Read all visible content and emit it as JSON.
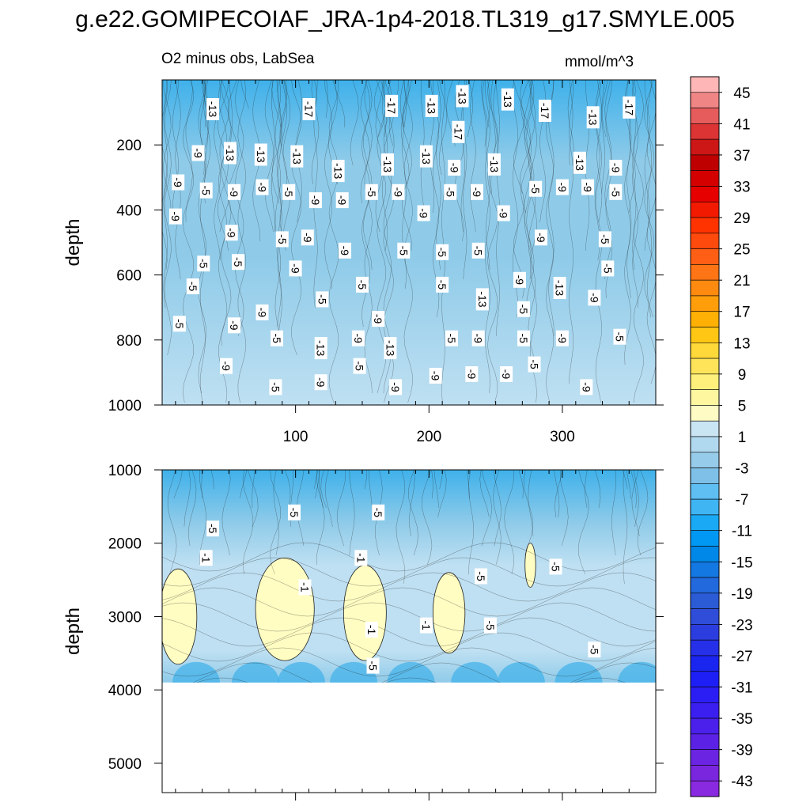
{
  "title": "g.e22.GOMIPECOIAF_JRA-1p4-2018.TL319_g17.SMYLE.005",
  "subtitle": "O2 minus obs, LabSea",
  "units": "mmol/m^3",
  "colors": {
    "negative_light": "#bfe0f2",
    "negative_mid": "#8fcbe9",
    "negative_deep": "#3fb1ea",
    "positive_light": "#fffdc2",
    "contour_line": "#1f1f1f",
    "missing": "#ffffff"
  },
  "chart_data": [
    {
      "type": "heatmap",
      "name": "upper-panel",
      "ylabel": "depth",
      "xlabel": "",
      "xlim": [
        0,
        370
      ],
      "ylim": [
        0,
        1000
      ],
      "y_inverted": true,
      "x_ticks": [
        100,
        200,
        300
      ],
      "x_tick_labels": [
        "100",
        "200",
        "300"
      ],
      "y_ticks": [
        200,
        400,
        600,
        800,
        1000
      ],
      "y_tick_labels": [
        "200",
        "400",
        "600",
        "800",
        "1000"
      ],
      "contour_labels": [
        {
          "x": 38,
          "depth": 90,
          "text": "-13"
        },
        {
          "x": 110,
          "depth": 90,
          "text": "-17"
        },
        {
          "x": 172,
          "depth": 80,
          "text": "-17"
        },
        {
          "x": 202,
          "depth": 80,
          "text": "-13"
        },
        {
          "x": 225,
          "depth": 50,
          "text": "-13"
        },
        {
          "x": 259,
          "depth": 60,
          "text": "-13"
        },
        {
          "x": 287,
          "depth": 95,
          "text": "-17"
        },
        {
          "x": 323,
          "depth": 115,
          "text": "-13"
        },
        {
          "x": 350,
          "depth": 85,
          "text": "-17"
        },
        {
          "x": 222,
          "depth": 160,
          "text": "-17"
        },
        {
          "x": 27,
          "depth": 225,
          "text": "-9"
        },
        {
          "x": 51,
          "depth": 225,
          "text": "-13"
        },
        {
          "x": 74,
          "depth": 230,
          "text": "-13"
        },
        {
          "x": 101,
          "depth": 235,
          "text": "-13"
        },
        {
          "x": 132,
          "depth": 280,
          "text": "-13"
        },
        {
          "x": 169,
          "depth": 260,
          "text": "-13"
        },
        {
          "x": 198,
          "depth": 235,
          "text": "-13"
        },
        {
          "x": 219,
          "depth": 270,
          "text": "-9"
        },
        {
          "x": 249,
          "depth": 260,
          "text": "-13"
        },
        {
          "x": 313,
          "depth": 255,
          "text": "-13"
        },
        {
          "x": 340,
          "depth": 270,
          "text": "-9"
        },
        {
          "x": 12,
          "depth": 315,
          "text": "-9"
        },
        {
          "x": 33,
          "depth": 340,
          "text": "-5"
        },
        {
          "x": 54,
          "depth": 345,
          "text": "-9"
        },
        {
          "x": 75,
          "depth": 330,
          "text": "-9"
        },
        {
          "x": 95,
          "depth": 345,
          "text": "-5"
        },
        {
          "x": 115,
          "depth": 370,
          "text": "-9"
        },
        {
          "x": 135,
          "depth": 370,
          "text": "-9"
        },
        {
          "x": 157,
          "depth": 345,
          "text": "-5"
        },
        {
          "x": 177,
          "depth": 345,
          "text": "-9"
        },
        {
          "x": 216,
          "depth": 345,
          "text": "-5"
        },
        {
          "x": 236,
          "depth": 345,
          "text": "-9"
        },
        {
          "x": 280,
          "depth": 335,
          "text": "-5"
        },
        {
          "x": 300,
          "depth": 330,
          "text": "-9"
        },
        {
          "x": 319,
          "depth": 330,
          "text": "-9"
        },
        {
          "x": 340,
          "depth": 345,
          "text": "-5"
        },
        {
          "x": 10,
          "depth": 420,
          "text": "-9"
        },
        {
          "x": 196,
          "depth": 410,
          "text": "-9"
        },
        {
          "x": 256,
          "depth": 410,
          "text": "-9"
        },
        {
          "x": 52,
          "depth": 470,
          "text": "-9"
        },
        {
          "x": 90,
          "depth": 490,
          "text": "-5"
        },
        {
          "x": 109,
          "depth": 485,
          "text": "-9"
        },
        {
          "x": 137,
          "depth": 525,
          "text": "-9"
        },
        {
          "x": 181,
          "depth": 525,
          "text": "-5"
        },
        {
          "x": 210,
          "depth": 530,
          "text": "-5"
        },
        {
          "x": 237,
          "depth": 525,
          "text": "-5"
        },
        {
          "x": 284,
          "depth": 485,
          "text": "-9"
        },
        {
          "x": 332,
          "depth": 490,
          "text": "-5"
        },
        {
          "x": 31,
          "depth": 565,
          "text": "-5"
        },
        {
          "x": 57,
          "depth": 560,
          "text": "-5"
        },
        {
          "x": 100,
          "depth": 580,
          "text": "-9"
        },
        {
          "x": 334,
          "depth": 580,
          "text": "-5"
        },
        {
          "x": 268,
          "depth": 615,
          "text": "-9"
        },
        {
          "x": 23,
          "depth": 635,
          "text": "-5"
        },
        {
          "x": 120,
          "depth": 675,
          "text": "-5"
        },
        {
          "x": 150,
          "depth": 630,
          "text": "-5"
        },
        {
          "x": 210,
          "depth": 630,
          "text": "-5"
        },
        {
          "x": 240,
          "depth": 675,
          "text": "-13"
        },
        {
          "x": 298,
          "depth": 640,
          "text": "-13"
        },
        {
          "x": 324,
          "depth": 670,
          "text": "-9"
        },
        {
          "x": 75,
          "depth": 715,
          "text": "-9"
        },
        {
          "x": 162,
          "depth": 735,
          "text": "-9"
        },
        {
          "x": 271,
          "depth": 705,
          "text": "-5"
        },
        {
          "x": 13,
          "depth": 750,
          "text": "-5"
        },
        {
          "x": 54,
          "depth": 755,
          "text": "-9"
        },
        {
          "x": 86,
          "depth": 795,
          "text": "-5"
        },
        {
          "x": 147,
          "depth": 795,
          "text": "-9"
        },
        {
          "x": 217,
          "depth": 795,
          "text": "-5"
        },
        {
          "x": 237,
          "depth": 795,
          "text": "-9"
        },
        {
          "x": 271,
          "depth": 795,
          "text": "-5"
        },
        {
          "x": 300,
          "depth": 795,
          "text": "-9"
        },
        {
          "x": 343,
          "depth": 790,
          "text": "-5"
        },
        {
          "x": 119,
          "depth": 825,
          "text": "-13"
        },
        {
          "x": 171,
          "depth": 825,
          "text": "-13"
        },
        {
          "x": 48,
          "depth": 880,
          "text": "-9"
        },
        {
          "x": 148,
          "depth": 880,
          "text": "-5"
        },
        {
          "x": 279,
          "depth": 875,
          "text": "-5"
        },
        {
          "x": 205,
          "depth": 910,
          "text": "-9"
        },
        {
          "x": 232,
          "depth": 905,
          "text": "-9"
        },
        {
          "x": 258,
          "depth": 905,
          "text": "-9"
        },
        {
          "x": 119,
          "depth": 930,
          "text": "-9"
        },
        {
          "x": 85,
          "depth": 945,
          "text": "-5"
        },
        {
          "x": 175,
          "depth": 945,
          "text": "-9"
        },
        {
          "x": 318,
          "depth": 945,
          "text": "-9"
        }
      ]
    },
    {
      "type": "heatmap",
      "name": "lower-panel",
      "ylabel": "depth",
      "xlabel": "",
      "xlim": [
        0,
        370
      ],
      "ylim": [
        1000,
        5400
      ],
      "y_inverted": true,
      "data_max_depth": 3900,
      "y_ticks": [
        1000,
        2000,
        3000,
        4000,
        5000
      ],
      "y_tick_labels": [
        "1000",
        "2000",
        "3000",
        "4000",
        "5000"
      ],
      "x_ticks": [
        100,
        200,
        300
      ],
      "x_tick_labels": [],
      "positive_patches": [
        {
          "x_center": 12,
          "depth_center": 3000,
          "x_half": 14,
          "depth_half": 650
        },
        {
          "x_center": 92,
          "depth_center": 2900,
          "x_half": 22,
          "depth_half": 700
        },
        {
          "x_center": 152,
          "depth_center": 2950,
          "x_half": 16,
          "depth_half": 650
        },
        {
          "x_center": 215,
          "depth_center": 2950,
          "x_half": 12,
          "depth_half": 550
        },
        {
          "x_center": 276,
          "depth_center": 2300,
          "x_half": 4,
          "depth_half": 300
        }
      ],
      "contour_labels": [
        {
          "x": 38,
          "depth": 1800,
          "text": "-5"
        },
        {
          "x": 33,
          "depth": 2200,
          "text": "-1"
        },
        {
          "x": 99,
          "depth": 1580,
          "text": "-5"
        },
        {
          "x": 162,
          "depth": 1580,
          "text": "-5"
        },
        {
          "x": 149,
          "depth": 2200,
          "text": "-1"
        },
        {
          "x": 107,
          "depth": 2600,
          "text": "-1"
        },
        {
          "x": 157,
          "depth": 3180,
          "text": "-1"
        },
        {
          "x": 198,
          "depth": 3120,
          "text": "-1"
        },
        {
          "x": 239,
          "depth": 2450,
          "text": "-5"
        },
        {
          "x": 246,
          "depth": 3120,
          "text": "-5"
        },
        {
          "x": 295,
          "depth": 2320,
          "text": "-5"
        },
        {
          "x": 324,
          "depth": 3450,
          "text": "-5"
        },
        {
          "x": 158,
          "depth": 3670,
          "text": "-5"
        }
      ]
    },
    {
      "type": "colorbar",
      "name": "colorbar",
      "levels": [
        -45,
        -43,
        -41,
        -39,
        -37,
        -35,
        -33,
        -31,
        -29,
        -27,
        -25,
        -23,
        -21,
        -19,
        -17,
        -15,
        -13,
        -11,
        -9,
        -7,
        -5,
        -3,
        -1,
        1,
        3,
        5,
        7,
        9,
        11,
        13,
        15,
        17,
        19,
        21,
        23,
        25,
        27,
        29,
        31,
        33,
        35,
        37,
        39,
        41,
        43,
        45,
        47
      ],
      "tick_labels": [
        "45",
        "41",
        "37",
        "33",
        "29",
        "25",
        "21",
        "17",
        "13",
        "9",
        "5",
        "1",
        "-3",
        "-7",
        "-11",
        "-15",
        "-19",
        "-23",
        "-27",
        "-31",
        "-35",
        "-39",
        "-43"
      ],
      "colors_top_to_bottom": [
        "#ffb6b6",
        "#f08585",
        "#e65c5c",
        "#dc3434",
        "#cd1616",
        "#be0000",
        "#d40000",
        "#e60000",
        "#f21a00",
        "#ff3300",
        "#ff4a0d",
        "#ff5f14",
        "#ff7414",
        "#ff8a10",
        "#ff9e0a",
        "#ffb005",
        "#ffc614",
        "#ffd83a",
        "#ffe45a",
        "#fff07c",
        "#fff6a0",
        "#fffbc4",
        "#c9e4f3",
        "#b0d8ef",
        "#96cbea",
        "#7ec0e8",
        "#5fbef2",
        "#3fb5f4",
        "#1aa9f5",
        "#0098f2",
        "#0088e8",
        "#1478e2",
        "#2169dc",
        "#2c5bd6",
        "#2f4dd8",
        "#2c3ddf",
        "#2630e8",
        "#1b25f0",
        "#1d1ff5",
        "#2b1ef5",
        "#3b1ff0",
        "#4b20ea",
        "#5b22e6",
        "#6b24e2",
        "#7a26df",
        "#8a2ae0"
      ]
    }
  ]
}
